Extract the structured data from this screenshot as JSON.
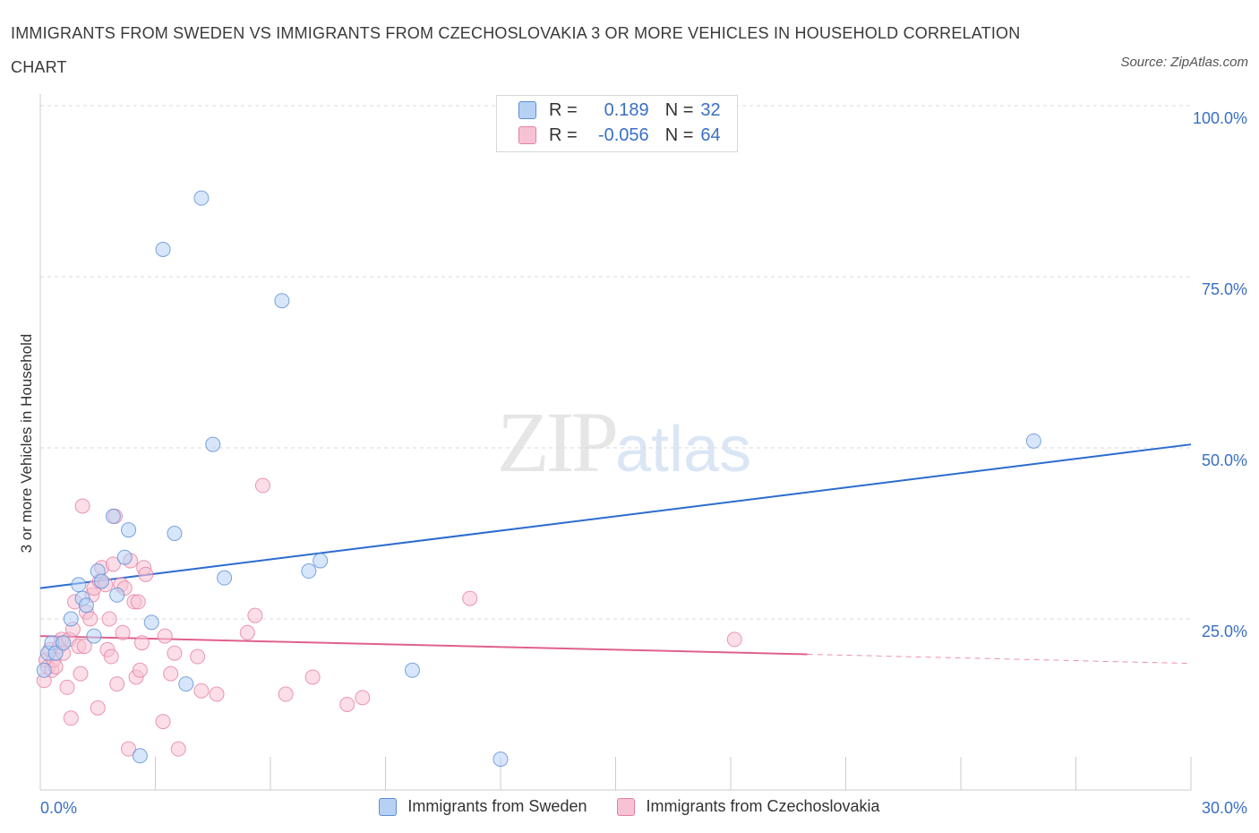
{
  "title": "IMMIGRANTS FROM SWEDEN VS IMMIGRANTS FROM CZECHOSLOVAKIA 3 OR MORE VEHICLES IN HOUSEHOLD CORRELATION CHART",
  "source": "Source: ZipAtlas.com",
  "watermark": {
    "zip": "ZIP",
    "atlas": "atlas"
  },
  "legend_top": {
    "r_label": "R =",
    "n_label": "N =",
    "rows": [
      {
        "r": "0.189",
        "n": "32"
      },
      {
        "r": "-0.056",
        "n": "64"
      }
    ]
  },
  "colors": {
    "sweden_fill": "#b7d1f5",
    "sweden_stroke": "#5b8fd6",
    "sweden_line": "#2a6cd0",
    "czech_fill": "#f7c3d4",
    "czech_stroke": "#e57fa2",
    "czech_line": "#e0608e",
    "grid": "#d9d9d9",
    "tick_text": "#3a6fc4"
  },
  "chart_data": {
    "type": "scatter",
    "title": "IMMIGRANTS FROM SWEDEN VS IMMIGRANTS FROM CZECHOSLOVAKIA 3 OR MORE VEHICLES IN HOUSEHOLD CORRELATION CHART",
    "xlabel": "",
    "ylabel": "3 or more Vehicles in Household",
    "xlim": [
      0,
      30
    ],
    "ylim": [
      0,
      100
    ],
    "x_tick_labels": [
      "0.0%",
      "30.0%"
    ],
    "y_ticks": [
      25,
      50,
      75,
      100
    ],
    "y_tick_labels": [
      "25.0%",
      "50.0%",
      "75.0%",
      "100.0%"
    ],
    "legend_position": "bottom",
    "series": [
      {
        "name": "Immigrants from Sweden",
        "R": 0.189,
        "N": 32,
        "trend": {
          "x": [
            0,
            30
          ],
          "y": [
            29.5,
            50.5
          ],
          "dashed_from": null
        },
        "points": [
          [
            0.1,
            17.5
          ],
          [
            0.2,
            20
          ],
          [
            0.3,
            21.5
          ],
          [
            0.4,
            20
          ],
          [
            0.6,
            21.5
          ],
          [
            0.8,
            25
          ],
          [
            1.0,
            30
          ],
          [
            1.1,
            28
          ],
          [
            1.2,
            27
          ],
          [
            1.4,
            22.5
          ],
          [
            1.5,
            32
          ],
          [
            1.6,
            30.5
          ],
          [
            1.9,
            40
          ],
          [
            2.0,
            28.5
          ],
          [
            2.2,
            34
          ],
          [
            2.3,
            38
          ],
          [
            2.6,
            5
          ],
          [
            2.9,
            24.5
          ],
          [
            3.2,
            79
          ],
          [
            3.5,
            37.5
          ],
          [
            3.8,
            15.5
          ],
          [
            4.2,
            86.5
          ],
          [
            4.5,
            50.5
          ],
          [
            4.8,
            31
          ],
          [
            6.3,
            71.5
          ],
          [
            7.0,
            32
          ],
          [
            7.3,
            33.5
          ],
          [
            9.7,
            17.5
          ],
          [
            12.0,
            4.5
          ],
          [
            25.9,
            51
          ]
        ]
      },
      {
        "name": "Immigrants from Czechoslovakia",
        "R": -0.056,
        "N": 64,
        "trend": {
          "x": [
            0,
            30
          ],
          "y": [
            22.5,
            18.5
          ],
          "dashed_from": 20
        },
        "points": [
          [
            0.1,
            16
          ],
          [
            0.15,
            19
          ],
          [
            0.2,
            18
          ],
          [
            0.25,
            20.5
          ],
          [
            0.3,
            17.5
          ],
          [
            0.35,
            19
          ],
          [
            0.4,
            18
          ],
          [
            0.5,
            21
          ],
          [
            0.55,
            22
          ],
          [
            0.6,
            20
          ],
          [
            0.7,
            15
          ],
          [
            0.75,
            22
          ],
          [
            0.8,
            10.5
          ],
          [
            0.85,
            23.5
          ],
          [
            0.9,
            27.5
          ],
          [
            1.0,
            21
          ],
          [
            1.05,
            17
          ],
          [
            1.1,
            41.5
          ],
          [
            1.15,
            21
          ],
          [
            1.2,
            26
          ],
          [
            1.3,
            25
          ],
          [
            1.35,
            28.5
          ],
          [
            1.4,
            29.5
          ],
          [
            1.5,
            12
          ],
          [
            1.55,
            30.5
          ],
          [
            1.6,
            32.5
          ],
          [
            1.7,
            30
          ],
          [
            1.75,
            20.5
          ],
          [
            1.8,
            25
          ],
          [
            1.85,
            19.5
          ],
          [
            1.9,
            33
          ],
          [
            1.95,
            40
          ],
          [
            2.0,
            15.5
          ],
          [
            2.1,
            30
          ],
          [
            2.15,
            23
          ],
          [
            2.2,
            29.5
          ],
          [
            2.3,
            6
          ],
          [
            2.35,
            33.5
          ],
          [
            2.45,
            27.5
          ],
          [
            2.5,
            16.5
          ],
          [
            2.55,
            27.5
          ],
          [
            2.6,
            17.5
          ],
          [
            2.65,
            21.5
          ],
          [
            2.7,
            32.5
          ],
          [
            2.75,
            31.5
          ],
          [
            3.2,
            10
          ],
          [
            3.25,
            22.5
          ],
          [
            3.4,
            17
          ],
          [
            3.5,
            20
          ],
          [
            3.6,
            6
          ],
          [
            4.1,
            19.5
          ],
          [
            4.2,
            14.5
          ],
          [
            4.6,
            14
          ],
          [
            5.4,
            23
          ],
          [
            5.6,
            25.5
          ],
          [
            5.8,
            44.5
          ],
          [
            6.4,
            14
          ],
          [
            7.1,
            16.5
          ],
          [
            8.0,
            12.5
          ],
          [
            8.4,
            13.5
          ],
          [
            11.2,
            28
          ],
          [
            18.1,
            22
          ]
        ]
      }
    ]
  }
}
